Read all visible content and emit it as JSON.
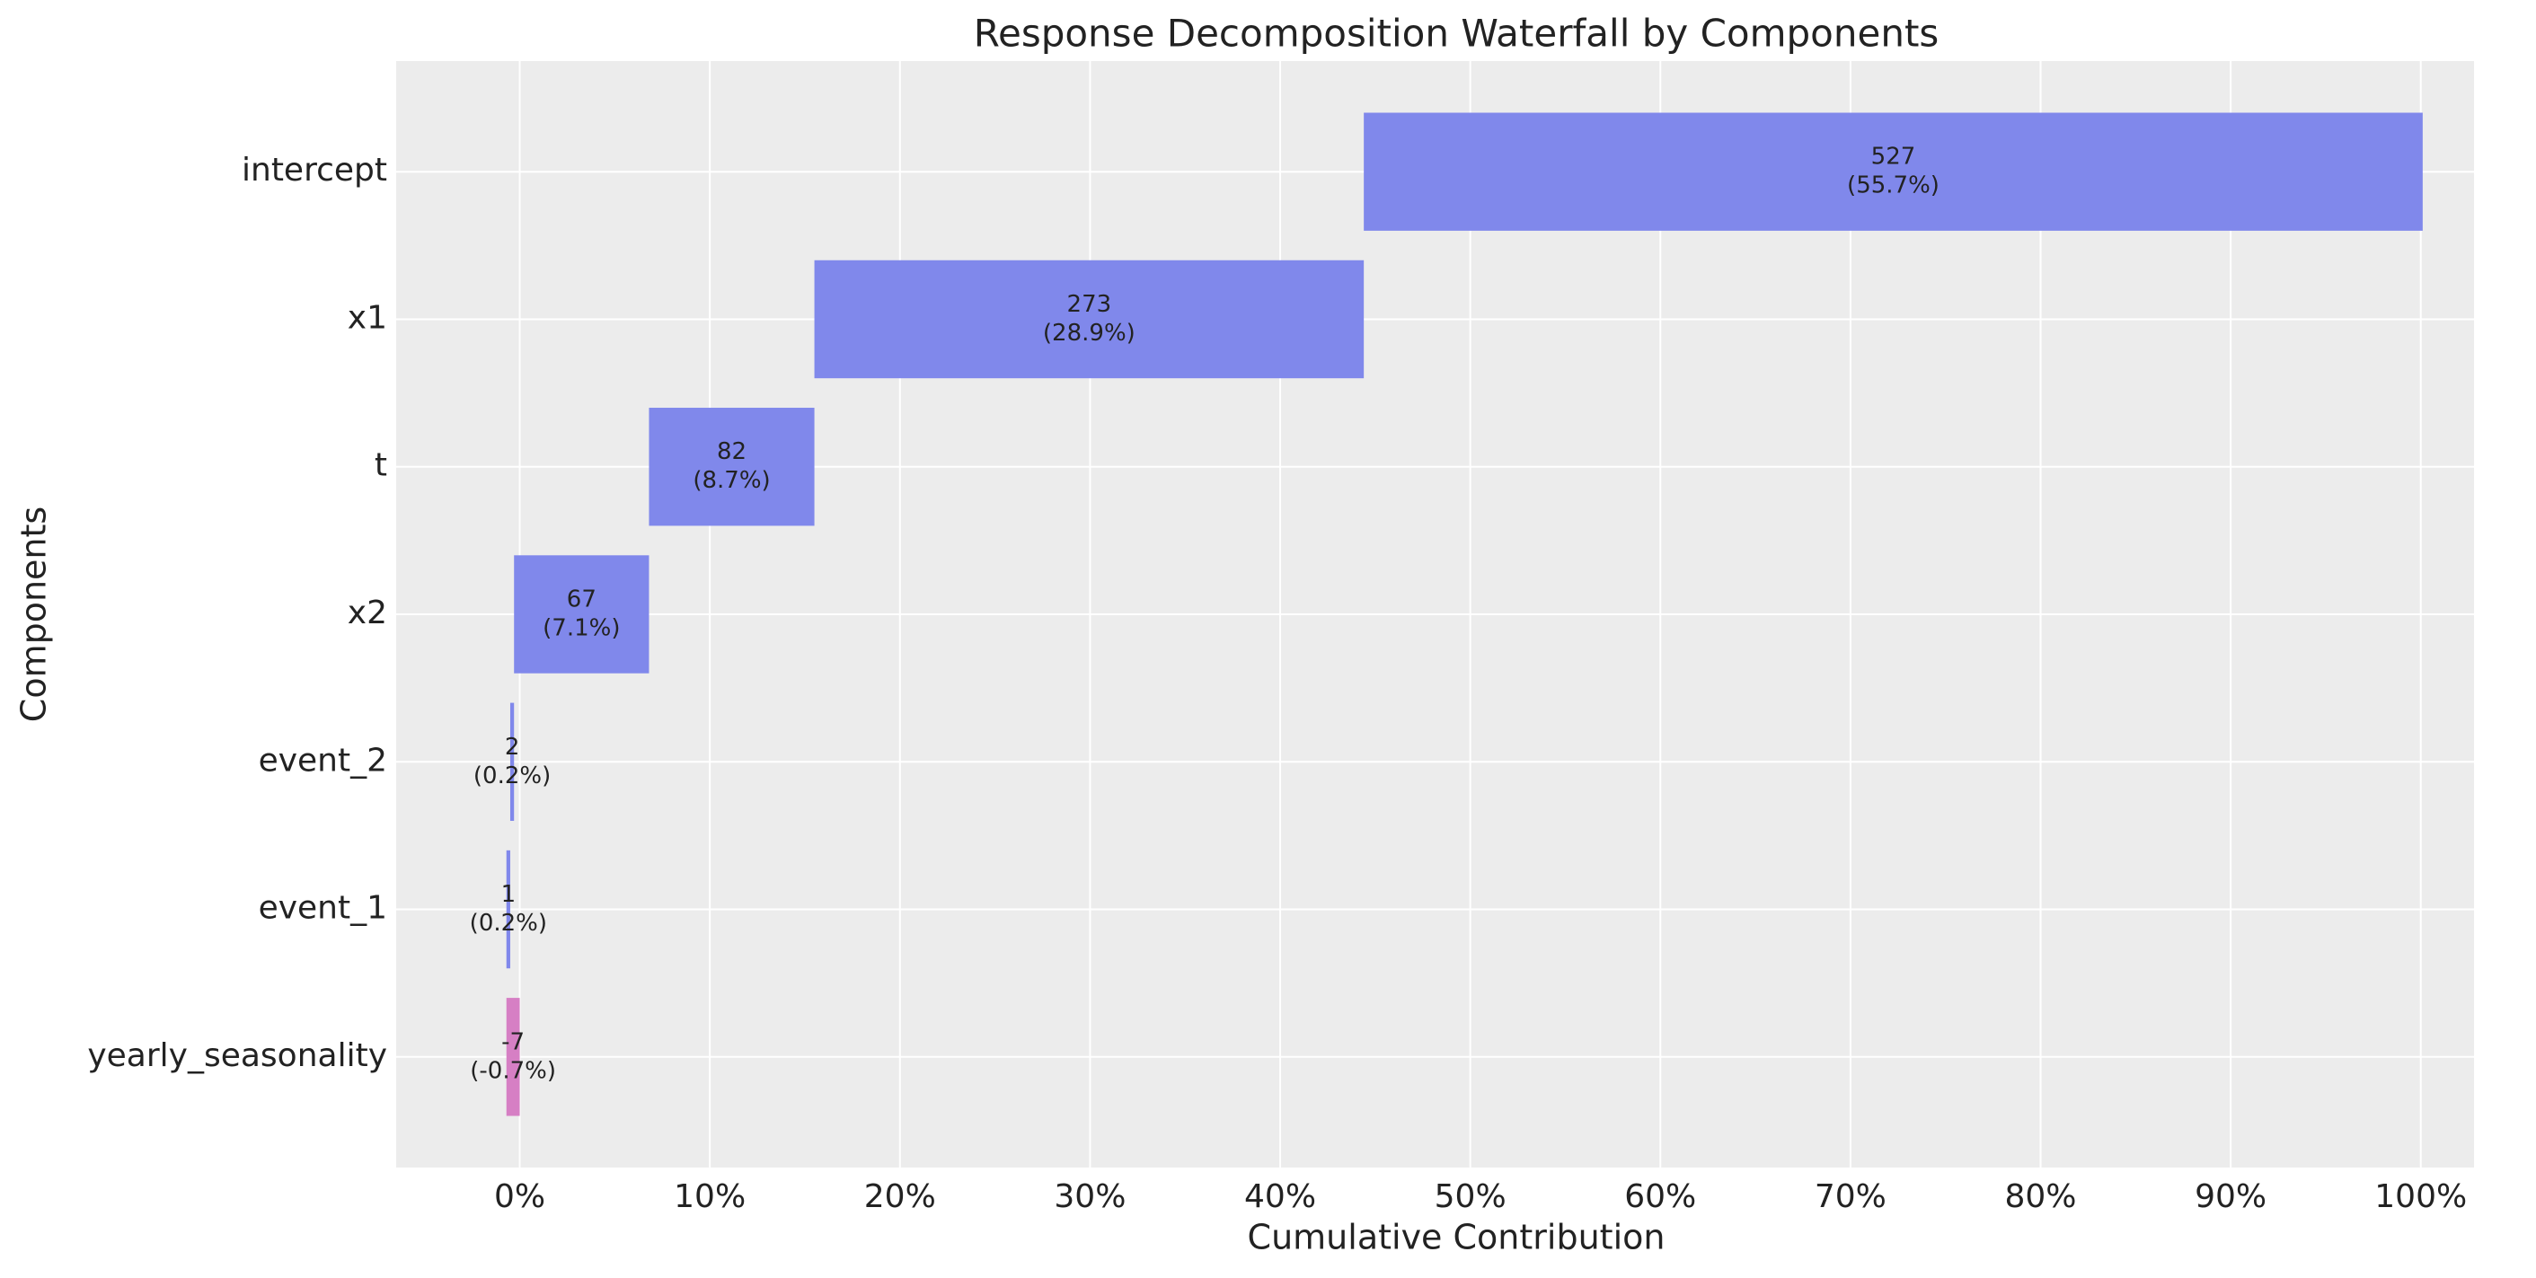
{
  "chart_data": {
    "type": "waterfall",
    "title": "Response Decomposition Waterfall by Components",
    "x_label": "Cumulative Contribution",
    "y_label": "Components",
    "categories": [
      "intercept",
      "x1",
      "t",
      "x2",
      "event_2",
      "event_1",
      "yearly_seasonality"
    ],
    "amounts": [
      527,
      273,
      82,
      67,
      2,
      1,
      -7
    ],
    "values": [
      55.7,
      28.9,
      8.7,
      7.1,
      0.2,
      0.2,
      -0.7
    ],
    "value_labels": [
      "(55.7%)",
      "(28.9%)",
      "(8.7%)",
      "(7.1%)",
      "(0.2%)",
      "(0.2%)",
      "(-0.7%)"
    ],
    "positive_color": "#8088eb",
    "negative_color": "#d67fc4",
    "xlim": [
      -6.5,
      102.8
    ],
    "xticks": [
      {
        "value": 0,
        "label": "0%"
      },
      {
        "value": 10,
        "label": "10%"
      },
      {
        "value": 20,
        "label": "20%"
      },
      {
        "value": 30,
        "label": "30%"
      },
      {
        "value": 40,
        "label": "40%"
      },
      {
        "value": 50,
        "label": "50%"
      },
      {
        "value": 60,
        "label": "60%"
      },
      {
        "value": 70,
        "label": "70%"
      },
      {
        "value": 80,
        "label": "80%"
      },
      {
        "value": 90,
        "label": "90%"
      },
      {
        "value": 100,
        "label": "100%"
      }
    ],
    "grid": true
  }
}
